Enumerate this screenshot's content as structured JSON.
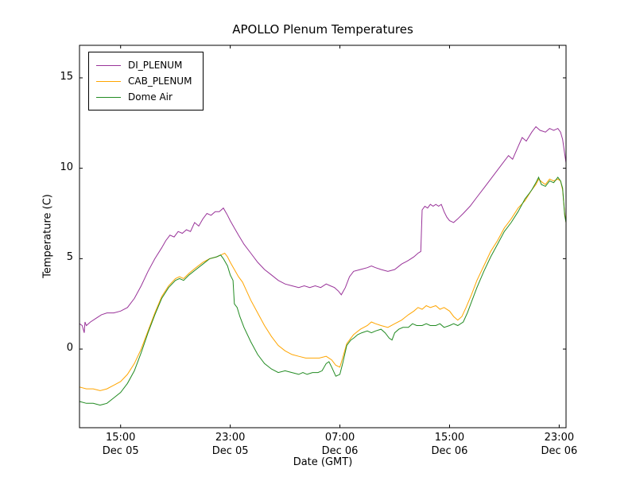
{
  "figure": {
    "background": "#ffffff",
    "frame_color": "#000000"
  },
  "chart_data": {
    "type": "line",
    "title": "APOLLO Plenum Temperatures",
    "xlabel": "Date (GMT)",
    "ylabel": "Temperature (C)",
    "xlim": [
      12.0,
      47.5
    ],
    "ylim": [
      -4.35,
      16.8
    ],
    "x_unit": "hours since Dec 05 00:00 GMT",
    "grid": false,
    "legend_position": "upper left",
    "xticks": [
      {
        "value": 15,
        "time": "15:00",
        "date": "Dec 05"
      },
      {
        "value": 23,
        "time": "23:00",
        "date": "Dec 05"
      },
      {
        "value": 31,
        "time": "07:00",
        "date": "Dec 06"
      },
      {
        "value": 39,
        "time": "15:00",
        "date": "Dec 06"
      },
      {
        "value": 47,
        "time": "23:00",
        "date": "Dec 06"
      }
    ],
    "yticks": [
      {
        "value": 0,
        "label": "0"
      },
      {
        "value": 5,
        "label": "5"
      },
      {
        "value": 10,
        "label": "10"
      },
      {
        "value": 15,
        "label": "15"
      }
    ],
    "series": [
      {
        "name": "DI_PLENUM",
        "color": "#993399",
        "points": [
          [
            12.0,
            1.4
          ],
          [
            12.2,
            1.3
          ],
          [
            12.35,
            0.9
          ],
          [
            12.4,
            1.5
          ],
          [
            12.5,
            1.3
          ],
          [
            12.8,
            1.5
          ],
          [
            13.2,
            1.7
          ],
          [
            13.6,
            1.9
          ],
          [
            14.0,
            2.0
          ],
          [
            14.5,
            2.0
          ],
          [
            15.0,
            2.1
          ],
          [
            15.5,
            2.3
          ],
          [
            16.0,
            2.8
          ],
          [
            16.5,
            3.5
          ],
          [
            17.0,
            4.3
          ],
          [
            17.5,
            5.0
          ],
          [
            18.0,
            5.6
          ],
          [
            18.3,
            6.0
          ],
          [
            18.6,
            6.3
          ],
          [
            18.9,
            6.2
          ],
          [
            19.2,
            6.5
          ],
          [
            19.5,
            6.4
          ],
          [
            19.8,
            6.6
          ],
          [
            20.1,
            6.5
          ],
          [
            20.4,
            7.0
          ],
          [
            20.7,
            6.8
          ],
          [
            21.0,
            7.2
          ],
          [
            21.3,
            7.5
          ],
          [
            21.6,
            7.4
          ],
          [
            21.9,
            7.6
          ],
          [
            22.2,
            7.6
          ],
          [
            22.5,
            7.8
          ],
          [
            22.8,
            7.4
          ],
          [
            23.0,
            7.1
          ],
          [
            23.3,
            6.7
          ],
          [
            23.6,
            6.3
          ],
          [
            24.0,
            5.8
          ],
          [
            24.5,
            5.3
          ],
          [
            25.0,
            4.8
          ],
          [
            25.5,
            4.4
          ],
          [
            26.0,
            4.1
          ],
          [
            26.5,
            3.8
          ],
          [
            27.0,
            3.6
          ],
          [
            27.5,
            3.5
          ],
          [
            28.0,
            3.4
          ],
          [
            28.4,
            3.5
          ],
          [
            28.8,
            3.4
          ],
          [
            29.2,
            3.5
          ],
          [
            29.6,
            3.4
          ],
          [
            30.0,
            3.6
          ],
          [
            30.3,
            3.5
          ],
          [
            30.6,
            3.4
          ],
          [
            30.9,
            3.2
          ],
          [
            31.1,
            3.0
          ],
          [
            31.4,
            3.4
          ],
          [
            31.7,
            4.0
          ],
          [
            32.0,
            4.3
          ],
          [
            32.5,
            4.4
          ],
          [
            33.0,
            4.5
          ],
          [
            33.3,
            4.6
          ],
          [
            33.6,
            4.5
          ],
          [
            34.0,
            4.4
          ],
          [
            34.5,
            4.3
          ],
          [
            35.0,
            4.4
          ],
          [
            35.5,
            4.7
          ],
          [
            36.0,
            4.9
          ],
          [
            36.4,
            5.1
          ],
          [
            36.7,
            5.3
          ],
          [
            36.9,
            5.4
          ],
          [
            37.0,
            7.7
          ],
          [
            37.2,
            7.9
          ],
          [
            37.4,
            7.8
          ],
          [
            37.6,
            8.0
          ],
          [
            37.8,
            7.9
          ],
          [
            38.0,
            8.0
          ],
          [
            38.2,
            7.9
          ],
          [
            38.4,
            8.0
          ],
          [
            38.6,
            7.6
          ],
          [
            38.8,
            7.3
          ],
          [
            39.0,
            7.1
          ],
          [
            39.3,
            7.0
          ],
          [
            39.6,
            7.2
          ],
          [
            40.0,
            7.5
          ],
          [
            40.5,
            7.9
          ],
          [
            41.0,
            8.4
          ],
          [
            41.5,
            8.9
          ],
          [
            42.0,
            9.4
          ],
          [
            42.5,
            9.9
          ],
          [
            43.0,
            10.4
          ],
          [
            43.3,
            10.7
          ],
          [
            43.6,
            10.5
          ],
          [
            44.0,
            11.2
          ],
          [
            44.3,
            11.7
          ],
          [
            44.6,
            11.5
          ],
          [
            45.0,
            12.0
          ],
          [
            45.3,
            12.3
          ],
          [
            45.6,
            12.1
          ],
          [
            46.0,
            12.0
          ],
          [
            46.3,
            12.2
          ],
          [
            46.6,
            12.1
          ],
          [
            46.9,
            12.2
          ],
          [
            47.1,
            12.0
          ],
          [
            47.25,
            11.6
          ],
          [
            47.4,
            10.8
          ],
          [
            47.5,
            10.3
          ]
        ]
      },
      {
        "name": "CAB_PLENUM",
        "color": "#ffa500",
        "points": [
          [
            12.0,
            -2.1
          ],
          [
            12.5,
            -2.2
          ],
          [
            13.0,
            -2.2
          ],
          [
            13.5,
            -2.3
          ],
          [
            14.0,
            -2.2
          ],
          [
            14.5,
            -2.0
          ],
          [
            15.0,
            -1.8
          ],
          [
            15.5,
            -1.4
          ],
          [
            16.0,
            -0.8
          ],
          [
            16.5,
            0.0
          ],
          [
            17.0,
            1.0
          ],
          [
            17.5,
            2.0
          ],
          [
            18.0,
            2.9
          ],
          [
            18.5,
            3.5
          ],
          [
            19.0,
            3.9
          ],
          [
            19.3,
            4.0
          ],
          [
            19.6,
            3.9
          ],
          [
            20.0,
            4.2
          ],
          [
            20.5,
            4.5
          ],
          [
            21.0,
            4.8
          ],
          [
            21.5,
            5.0
          ],
          [
            22.0,
            5.1
          ],
          [
            22.3,
            5.2
          ],
          [
            22.6,
            5.3
          ],
          [
            22.8,
            5.1
          ],
          [
            23.0,
            4.8
          ],
          [
            23.3,
            4.4
          ],
          [
            23.6,
            4.0
          ],
          [
            23.9,
            3.7
          ],
          [
            24.2,
            3.2
          ],
          [
            24.5,
            2.7
          ],
          [
            25.0,
            2.0
          ],
          [
            25.5,
            1.3
          ],
          [
            26.0,
            0.7
          ],
          [
            26.5,
            0.2
          ],
          [
            27.0,
            -0.1
          ],
          [
            27.5,
            -0.3
          ],
          [
            28.0,
            -0.4
          ],
          [
            28.5,
            -0.5
          ],
          [
            29.0,
            -0.5
          ],
          [
            29.5,
            -0.5
          ],
          [
            30.0,
            -0.4
          ],
          [
            30.4,
            -0.6
          ],
          [
            30.7,
            -0.9
          ],
          [
            31.0,
            -1.0
          ],
          [
            31.2,
            -0.5
          ],
          [
            31.5,
            0.3
          ],
          [
            31.8,
            0.6
          ],
          [
            32.0,
            0.8
          ],
          [
            32.5,
            1.1
          ],
          [
            33.0,
            1.3
          ],
          [
            33.3,
            1.5
          ],
          [
            33.6,
            1.4
          ],
          [
            34.0,
            1.3
          ],
          [
            34.5,
            1.2
          ],
          [
            35.0,
            1.4
          ],
          [
            35.5,
            1.6
          ],
          [
            36.0,
            1.9
          ],
          [
            36.4,
            2.1
          ],
          [
            36.7,
            2.3
          ],
          [
            37.0,
            2.2
          ],
          [
            37.3,
            2.4
          ],
          [
            37.6,
            2.3
          ],
          [
            38.0,
            2.4
          ],
          [
            38.3,
            2.2
          ],
          [
            38.6,
            2.3
          ],
          [
            39.0,
            2.1
          ],
          [
            39.3,
            1.8
          ],
          [
            39.6,
            1.6
          ],
          [
            39.9,
            1.8
          ],
          [
            40.2,
            2.3
          ],
          [
            40.6,
            3.0
          ],
          [
            41.0,
            3.8
          ],
          [
            41.5,
            4.6
          ],
          [
            42.0,
            5.4
          ],
          [
            42.5,
            6.0
          ],
          [
            43.0,
            6.7
          ],
          [
            43.5,
            7.2
          ],
          [
            44.0,
            7.8
          ],
          [
            44.5,
            8.2
          ],
          [
            45.0,
            8.8
          ],
          [
            45.3,
            9.1
          ],
          [
            45.5,
            9.4
          ],
          [
            45.8,
            9.2
          ],
          [
            46.0,
            9.1
          ],
          [
            46.3,
            9.4
          ],
          [
            46.6,
            9.3
          ],
          [
            46.9,
            9.4
          ],
          [
            47.1,
            9.3
          ],
          [
            47.25,
            8.8
          ],
          [
            47.4,
            7.5
          ],
          [
            47.5,
            7.0
          ]
        ]
      },
      {
        "name": "Dome Air",
        "color": "#228b22",
        "points": [
          [
            12.0,
            -2.9
          ],
          [
            12.5,
            -3.0
          ],
          [
            13.0,
            -3.0
          ],
          [
            13.5,
            -3.1
          ],
          [
            14.0,
            -3.0
          ],
          [
            14.5,
            -2.7
          ],
          [
            15.0,
            -2.4
          ],
          [
            15.5,
            -1.9
          ],
          [
            16.0,
            -1.2
          ],
          [
            16.5,
            -0.2
          ],
          [
            17.0,
            0.9
          ],
          [
            17.5,
            1.9
          ],
          [
            18.0,
            2.8
          ],
          [
            18.5,
            3.4
          ],
          [
            19.0,
            3.8
          ],
          [
            19.3,
            3.9
          ],
          [
            19.6,
            3.8
          ],
          [
            20.0,
            4.1
          ],
          [
            20.5,
            4.4
          ],
          [
            21.0,
            4.7
          ],
          [
            21.5,
            5.0
          ],
          [
            22.0,
            5.1
          ],
          [
            22.3,
            5.2
          ],
          [
            22.5,
            5.0
          ],
          [
            22.8,
            4.6
          ],
          [
            23.0,
            4.1
          ],
          [
            23.2,
            3.8
          ],
          [
            23.3,
            2.5
          ],
          [
            23.5,
            2.3
          ],
          [
            23.7,
            1.8
          ],
          [
            24.0,
            1.2
          ],
          [
            24.5,
            0.4
          ],
          [
            25.0,
            -0.3
          ],
          [
            25.5,
            -0.8
          ],
          [
            26.0,
            -1.1
          ],
          [
            26.5,
            -1.3
          ],
          [
            27.0,
            -1.2
          ],
          [
            27.5,
            -1.3
          ],
          [
            28.0,
            -1.4
          ],
          [
            28.3,
            -1.3
          ],
          [
            28.6,
            -1.4
          ],
          [
            29.0,
            -1.3
          ],
          [
            29.4,
            -1.3
          ],
          [
            29.7,
            -1.2
          ],
          [
            30.0,
            -0.8
          ],
          [
            30.2,
            -0.7
          ],
          [
            30.4,
            -1.0
          ],
          [
            30.7,
            -1.5
          ],
          [
            31.0,
            -1.4
          ],
          [
            31.2,
            -0.8
          ],
          [
            31.5,
            0.2
          ],
          [
            31.8,
            0.5
          ],
          [
            32.0,
            0.6
          ],
          [
            32.3,
            0.8
          ],
          [
            32.6,
            0.9
          ],
          [
            33.0,
            1.0
          ],
          [
            33.3,
            0.9
          ],
          [
            33.6,
            1.0
          ],
          [
            34.0,
            1.1
          ],
          [
            34.3,
            0.9
          ],
          [
            34.6,
            0.6
          ],
          [
            34.8,
            0.5
          ],
          [
            35.0,
            0.9
          ],
          [
            35.3,
            1.1
          ],
          [
            35.6,
            1.2
          ],
          [
            36.0,
            1.2
          ],
          [
            36.3,
            1.4
          ],
          [
            36.6,
            1.3
          ],
          [
            37.0,
            1.3
          ],
          [
            37.3,
            1.4
          ],
          [
            37.6,
            1.3
          ],
          [
            38.0,
            1.3
          ],
          [
            38.3,
            1.4
          ],
          [
            38.6,
            1.2
          ],
          [
            39.0,
            1.3
          ],
          [
            39.3,
            1.4
          ],
          [
            39.6,
            1.3
          ],
          [
            40.0,
            1.5
          ],
          [
            40.3,
            2.0
          ],
          [
            40.6,
            2.6
          ],
          [
            41.0,
            3.4
          ],
          [
            41.5,
            4.3
          ],
          [
            42.0,
            5.1
          ],
          [
            42.5,
            5.8
          ],
          [
            43.0,
            6.5
          ],
          [
            43.5,
            7.0
          ],
          [
            44.0,
            7.6
          ],
          [
            44.5,
            8.3
          ],
          [
            44.8,
            8.6
          ],
          [
            45.0,
            8.8
          ],
          [
            45.3,
            9.2
          ],
          [
            45.5,
            9.5
          ],
          [
            45.7,
            9.1
          ],
          [
            46.0,
            9.0
          ],
          [
            46.3,
            9.3
          ],
          [
            46.6,
            9.2
          ],
          [
            46.9,
            9.5
          ],
          [
            47.1,
            9.3
          ],
          [
            47.25,
            8.9
          ],
          [
            47.4,
            7.4
          ],
          [
            47.5,
            7.0
          ]
        ]
      }
    ]
  }
}
